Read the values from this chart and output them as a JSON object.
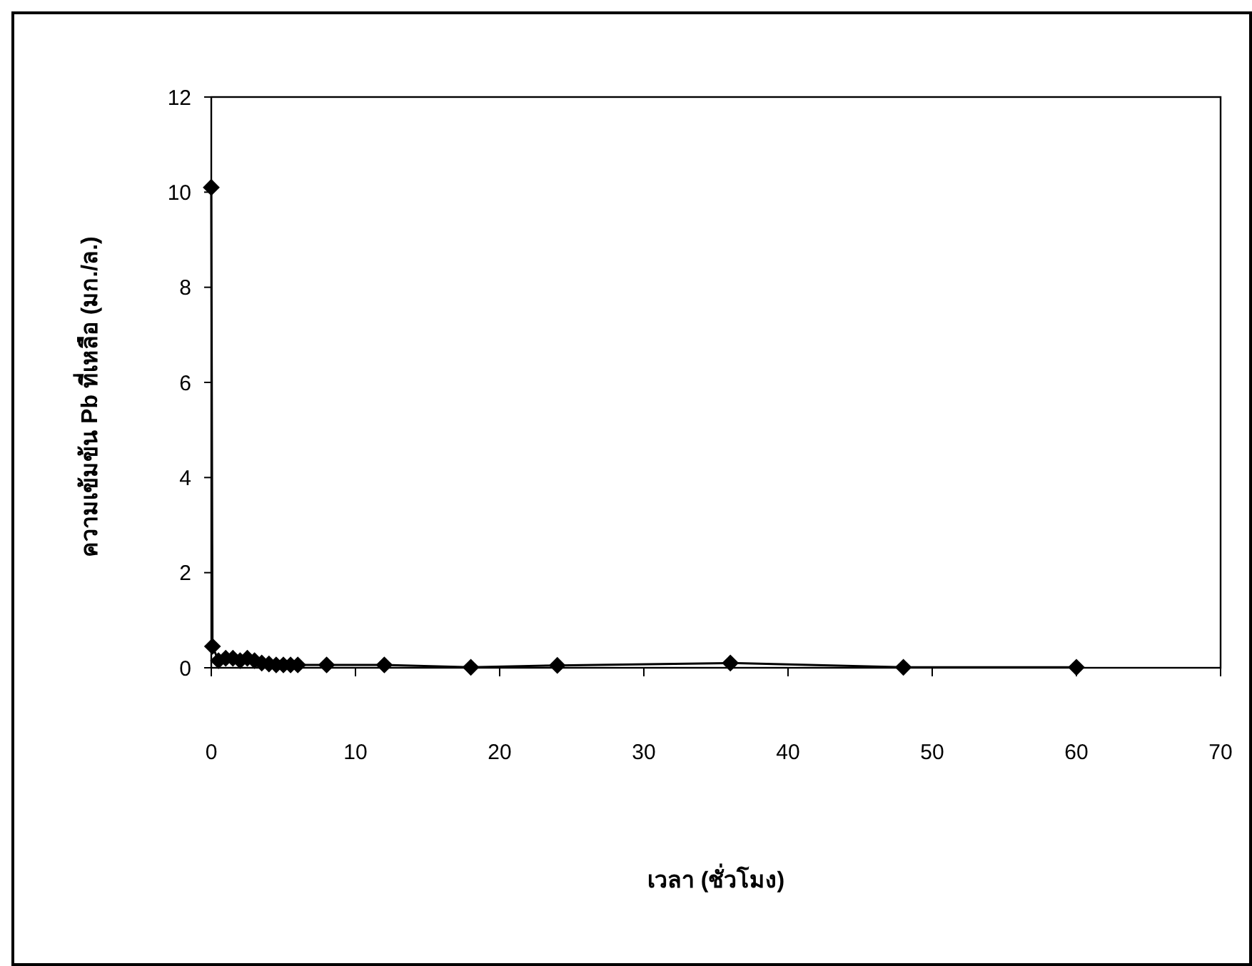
{
  "chart_data": {
    "type": "line",
    "xlabel": "เวลา (ชั่วโมง)",
    "ylabel": "ความเข้มข้น  Pb ที่เหลือ (มก./ล.)",
    "x": [
      0,
      0.083,
      0.5,
      1,
      1.5,
      2,
      2.5,
      3,
      3.5,
      4,
      4.5,
      5,
      5.5,
      6,
      8,
      12,
      18,
      24,
      36,
      48,
      60
    ],
    "series": [
      {
        "color": "#000000",
        "values": [
          10.1,
          0.45,
          0.15,
          0.2,
          0.2,
          0.15,
          0.2,
          0.15,
          0.1,
          0.08,
          0.06,
          0.06,
          0.06,
          0.06,
          0.06,
          0.06,
          0.01,
          0.05,
          0.1,
          0.01,
          0.01
        ]
      }
    ],
    "xlim": [
      0,
      70
    ],
    "xticks": [
      0,
      10,
      20,
      30,
      40,
      50,
      60,
      70
    ],
    "ylim": [
      0,
      12
    ],
    "yticks": [
      0,
      2,
      4,
      6,
      8,
      10,
      12
    ],
    "grid": false,
    "marker": "diamond",
    "line_style": "solid"
  }
}
